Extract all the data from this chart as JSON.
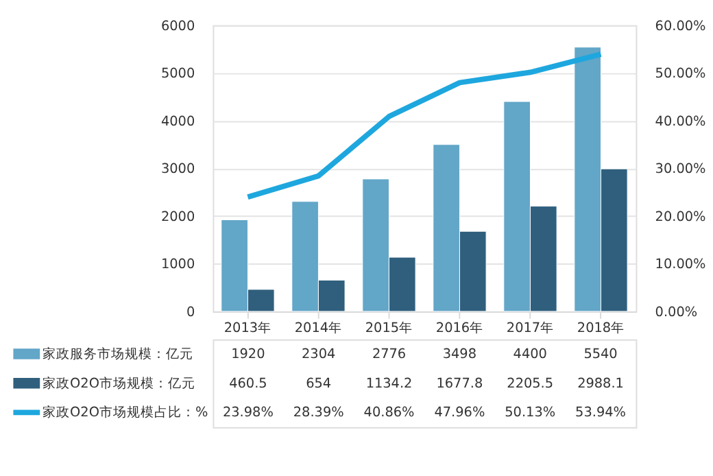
{
  "chart_data": {
    "type": "bar",
    "categories": [
      "2013年",
      "2014年",
      "2015年",
      "2016年",
      "2017年",
      "2018年"
    ],
    "series": [
      {
        "name": "家政服务市场规模：亿元",
        "color": "#62a6c8",
        "values": [
          1920,
          2304,
          2776,
          3498,
          4400,
          5540
        ],
        "value_labels": [
          "1920",
          "2304",
          "2776",
          "3498",
          "4400",
          "5540"
        ]
      },
      {
        "name": "家政O2O市场规模：亿元",
        "color": "#2f5f7d",
        "values": [
          460.5,
          654,
          1134.2,
          1677.8,
          2205.5,
          2988.1
        ],
        "value_labels": [
          "460.5",
          "654",
          "1134.2",
          "1677.8",
          "2205.5",
          "2988.1"
        ]
      },
      {
        "name": "家政O2O市场规模占比：%",
        "type": "line",
        "axis": "y2",
        "color": "#1ea7de",
        "values": [
          23.98,
          28.39,
          40.86,
          47.96,
          50.13,
          53.94
        ],
        "value_labels": [
          "23.98%",
          "28.39%",
          "40.86%",
          "47.96%",
          "50.13%",
          "53.94%"
        ]
      }
    ],
    "ylim": [
      0,
      6000
    ],
    "yticks": [
      0,
      1000,
      2000,
      3000,
      4000,
      5000,
      6000
    ],
    "y2lim": [
      0,
      60
    ],
    "y2ticks": [
      {
        "value": 0,
        "label": "0.00%"
      },
      {
        "value": 10,
        "label": "10.00%"
      },
      {
        "value": 20,
        "label": "20.00%"
      },
      {
        "value": 30,
        "label": "30.00%"
      },
      {
        "value": 40,
        "label": "40.00%"
      },
      {
        "value": 50,
        "label": "50.00%"
      },
      {
        "value": 60,
        "label": "60.00%"
      }
    ],
    "grid": "y",
    "legend": "bottom"
  }
}
